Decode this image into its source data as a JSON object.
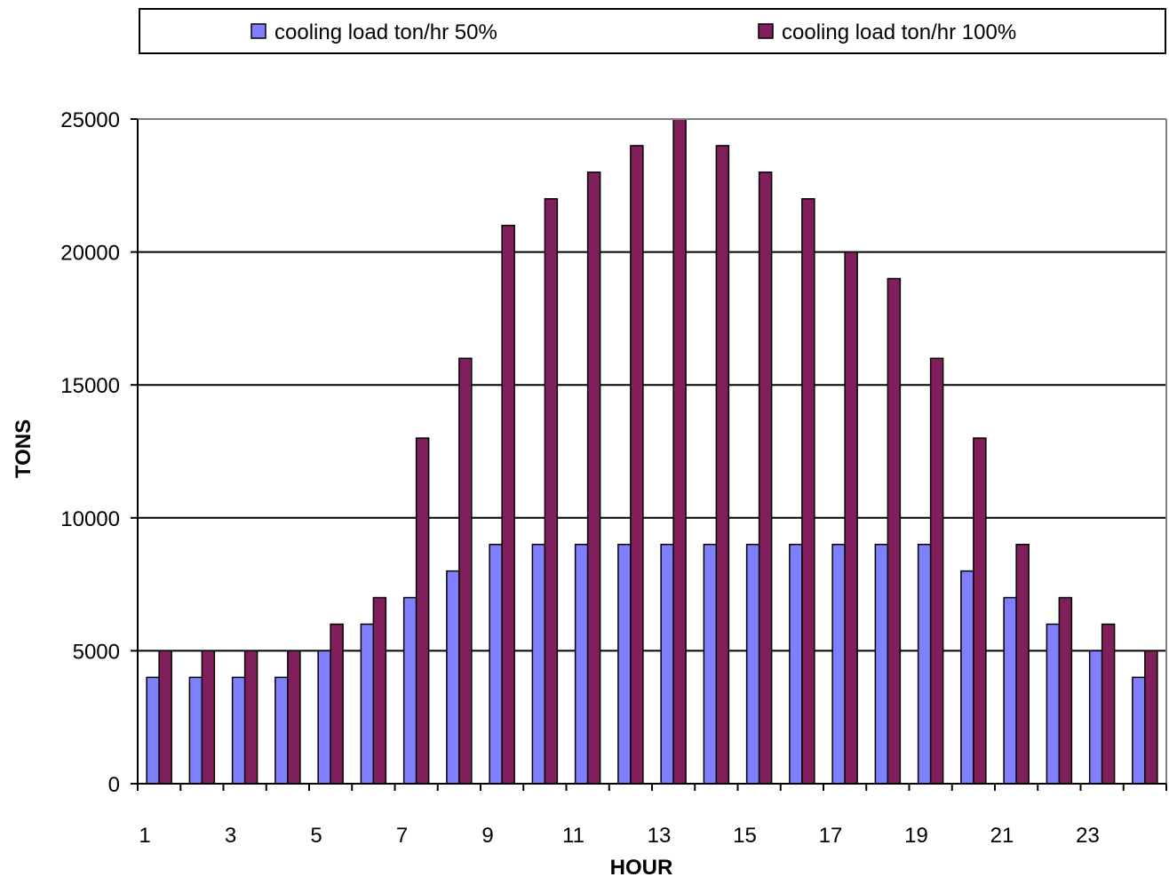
{
  "chart_data": {
    "type": "bar",
    "xlabel": "HOUR",
    "ylabel": "TONS",
    "ylim": [
      0,
      25000
    ],
    "yticks": [
      0,
      5000,
      10000,
      15000,
      20000,
      25000
    ],
    "categories": [
      1,
      2,
      3,
      4,
      5,
      6,
      7,
      8,
      9,
      10,
      11,
      12,
      13,
      14,
      15,
      16,
      17,
      18,
      19,
      20,
      21,
      22,
      23,
      24
    ],
    "xtick_labels": [
      "1",
      "3",
      "5",
      "7",
      "9",
      "11",
      "13",
      "15",
      "17",
      "19",
      "21",
      "23"
    ],
    "grid": "horizontal",
    "legend_position": "top",
    "series": [
      {
        "name": "cooling load ton/hr 50%",
        "color": "#8080ff",
        "values": [
          4000,
          4000,
          4000,
          4000,
          5000,
          6000,
          7000,
          8000,
          9000,
          9000,
          9000,
          9000,
          9000,
          9000,
          9000,
          9000,
          9000,
          9000,
          9000,
          8000,
          7000,
          6000,
          5000,
          4000
        ]
      },
      {
        "name": "cooling load ton/hr 100%",
        "color": "#801f5c",
        "values": [
          5000,
          5000,
          5000,
          5000,
          6000,
          7000,
          13000,
          16000,
          21000,
          22000,
          23000,
          24000,
          25000,
          24000,
          23000,
          22000,
          20000,
          19000,
          16000,
          13000,
          9000,
          7000,
          6000,
          5000
        ]
      }
    ]
  }
}
